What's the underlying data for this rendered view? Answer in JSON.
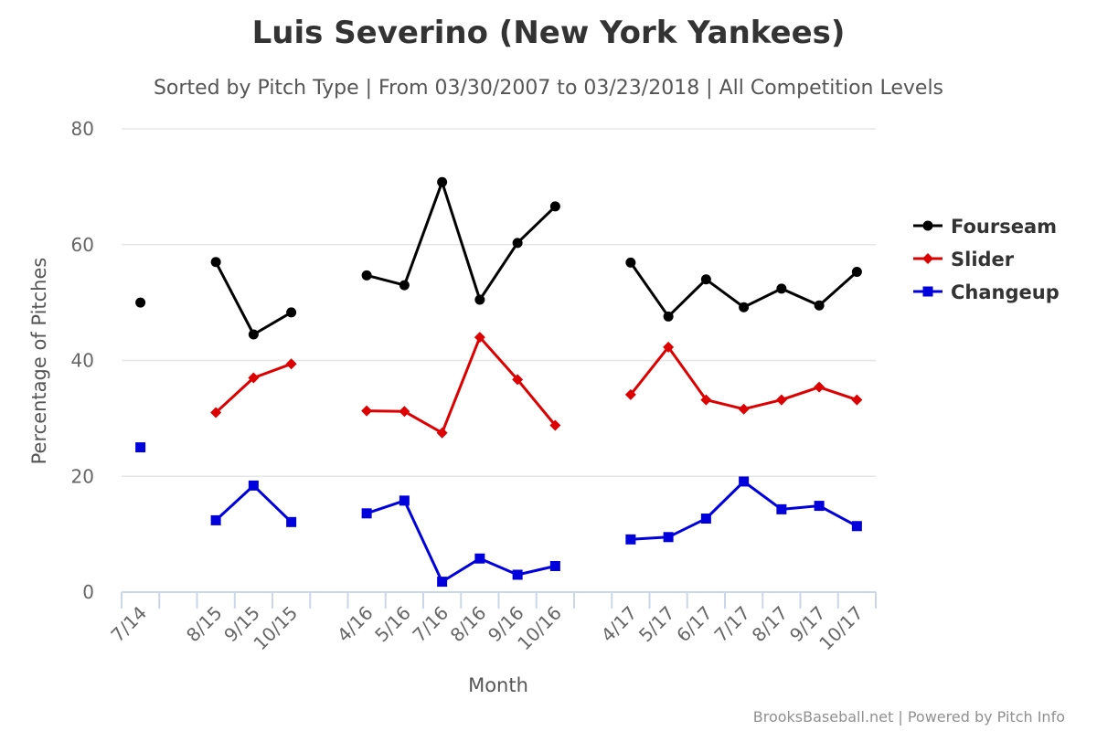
{
  "chart_data": {
    "type": "line",
    "title": "Luis Severino (New York Yankees)",
    "subtitle": "Sorted by Pitch Type | From 03/30/2007 to 03/23/2018 | All Competition Levels",
    "xlabel": "Month",
    "ylabel": "Percentage of Pitches",
    "ylim": [
      0,
      80
    ],
    "yticks": [
      0,
      20,
      40,
      60,
      80
    ],
    "grid": true,
    "legend_position": "right",
    "categories": [
      "7/14",
      "",
      "8/15",
      "9/15",
      "10/15",
      "",
      "4/16",
      "5/16",
      "7/16",
      "8/16",
      "9/16",
      "10/16",
      "",
      "4/17",
      "5/17",
      "6/17",
      "7/17",
      "8/17",
      "9/17",
      "10/17"
    ],
    "series": [
      {
        "name": "Fourseam",
        "color": "#000000",
        "marker": "circle",
        "values": [
          50,
          null,
          57,
          44.5,
          48.3,
          null,
          54.7,
          53,
          70.8,
          50.5,
          60.3,
          66.6,
          null,
          56.9,
          47.6,
          54,
          49.2,
          52.4,
          49.5,
          55.3
        ]
      },
      {
        "name": "Slider",
        "color": "#dd0000",
        "marker": "diamond",
        "values": [
          null,
          null,
          31,
          37,
          39.4,
          null,
          31.3,
          31.2,
          27.5,
          44,
          36.7,
          28.8,
          null,
          34.1,
          42.3,
          33.2,
          31.6,
          33.2,
          35.4,
          33.2
        ]
      },
      {
        "name": "Changeup",
        "color": "#0000dd",
        "marker": "square",
        "values": [
          25,
          null,
          12.4,
          18.4,
          12.1,
          null,
          13.6,
          15.8,
          1.8,
          5.8,
          3,
          4.5,
          null,
          9.1,
          9.5,
          12.7,
          19.1,
          14.3,
          14.9,
          11.4
        ]
      }
    ],
    "credits": "BrooksBaseball.net | Powered by Pitch Info"
  }
}
